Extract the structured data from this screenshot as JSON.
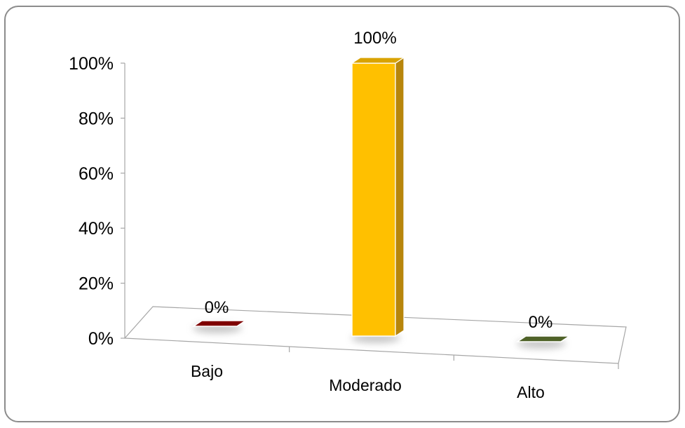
{
  "chart_data": {
    "type": "bar",
    "categories": [
      "Bajo",
      "Moderado",
      "Alto"
    ],
    "values": [
      0,
      100,
      0
    ],
    "data_labels": [
      "0%",
      "100%",
      "0%"
    ],
    "y_ticks": [
      "0%",
      "20%",
      "40%",
      "60%",
      "80%",
      "100%"
    ],
    "ylim": [
      0,
      100
    ],
    "colors": [
      "#7f0000",
      "#ffc000",
      "#4f6228"
    ],
    "title": "",
    "xlabel": "",
    "ylabel": "",
    "grid": false,
    "legend": "none",
    "style": "3d-perspective"
  }
}
